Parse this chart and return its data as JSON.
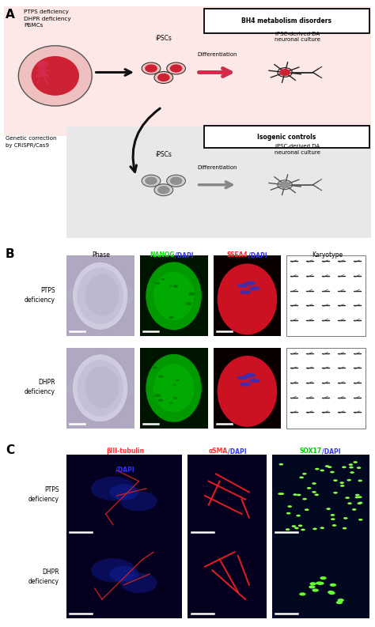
{
  "fig_width": 4.74,
  "fig_height": 7.93,
  "dpi": 100,
  "bg_color": "#ffffff",
  "panel_A": {
    "top_box_bg": "#fce8e6",
    "bottom_box_bg": "#e8e8e8",
    "bh4_label": "BH4 metabolism disorders",
    "isogenic_label": "Isogenic controls",
    "ptps_text": "PTPS deficiency\nDHPR deficiency\nPBMCs",
    "ipscs_top_text": "iPSCs",
    "diff_top_text": "Differentiation",
    "ipsc_derived_top": "iPSC-derived DA\nneuronal culture",
    "genetic_text": "Genetic correction\nby CRISPR/Cas9",
    "ipscs_bot_text": "iPSCs",
    "diff_bot_text": "Differentiation",
    "ipsc_derived_bot": "iPSC-derived DA\nneuronal culture",
    "person_color": "#d4294a",
    "cell_fill_red": "#cc2233",
    "cell_fill_pink": "#f5c0c0",
    "cell_fill_gray": "#909090",
    "cell_fill_lightgray": "#d0d0d0",
    "arrow_black": "#111111",
    "arrow_red": "#d4294a",
    "arrow_gray": "#888888"
  },
  "panel_B": {
    "row_labels": [
      "PTPS\ndeficiency",
      "DHPR\ndeficiency"
    ],
    "phase_bg": "#b0a8c0",
    "nanog_bg": "#001500",
    "ssea4_bg": "#0a0000",
    "karyo_bg": "#ffffff"
  },
  "panel_C": {
    "row_labels": [
      "PTPS\ndeficiency",
      "DHPR\ndeficiency"
    ],
    "tube_bg": "#050020",
    "sma_bg": "#050020",
    "sox_bg": "#020820"
  }
}
